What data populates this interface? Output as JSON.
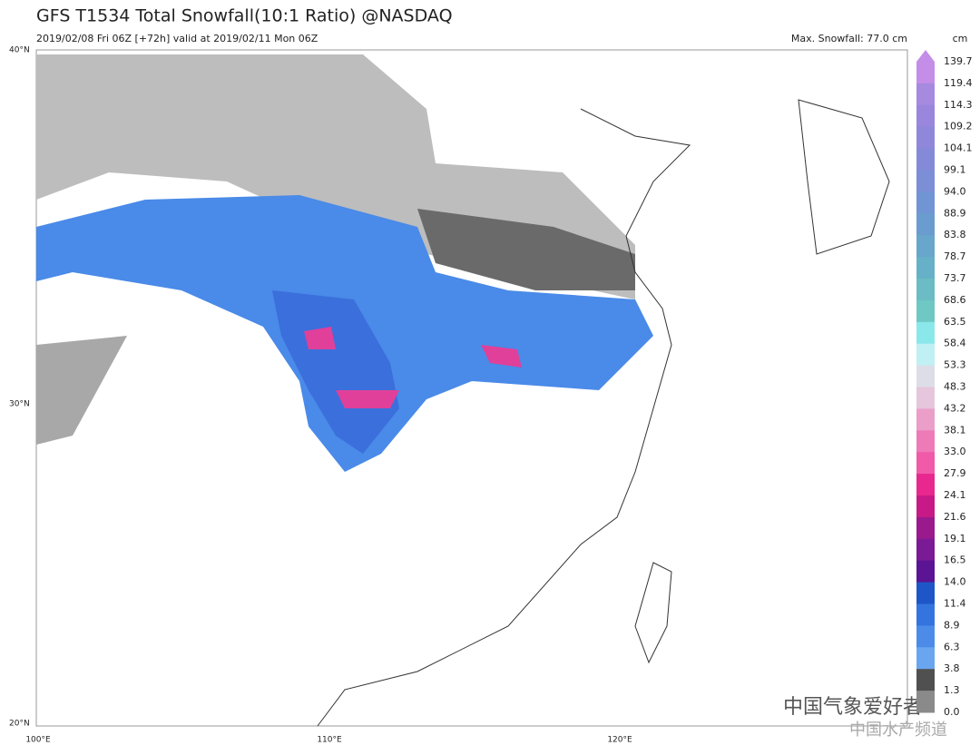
{
  "header": {
    "title": "GFS T1534 Total Snowfall(10:1 Ratio) @NASDAQ",
    "subtitle": "2019/02/08 Fri 06Z [+72h] valid at 2019/02/11 Mon 06Z",
    "max_snowfall": "Max. Snowfall: 77.0 cm"
  },
  "colorbar": {
    "unit": "cm",
    "labels": [
      "139.7",
      "119.4",
      "114.3",
      "109.2",
      "104.1",
      "99.1",
      "94.0",
      "88.9",
      "83.8",
      "78.7",
      "73.7",
      "68.6",
      "63.5",
      "58.4",
      "53.3",
      "48.3",
      "43.2",
      "38.1",
      "33.0",
      "27.9",
      "24.1",
      "21.6",
      "19.1",
      "16.5",
      "14.0",
      "11.4",
      "8.9",
      "6.3",
      "3.8",
      "1.3",
      "0.0"
    ]
  },
  "axes": {
    "latitudes": [
      "40°N",
      "30°N",
      "20°N"
    ],
    "longitudes": [
      "100°E",
      "110°E",
      "120°E"
    ]
  },
  "watermark": {
    "primary": "中国气象爱好者",
    "secondary": "中国水产频道"
  }
}
